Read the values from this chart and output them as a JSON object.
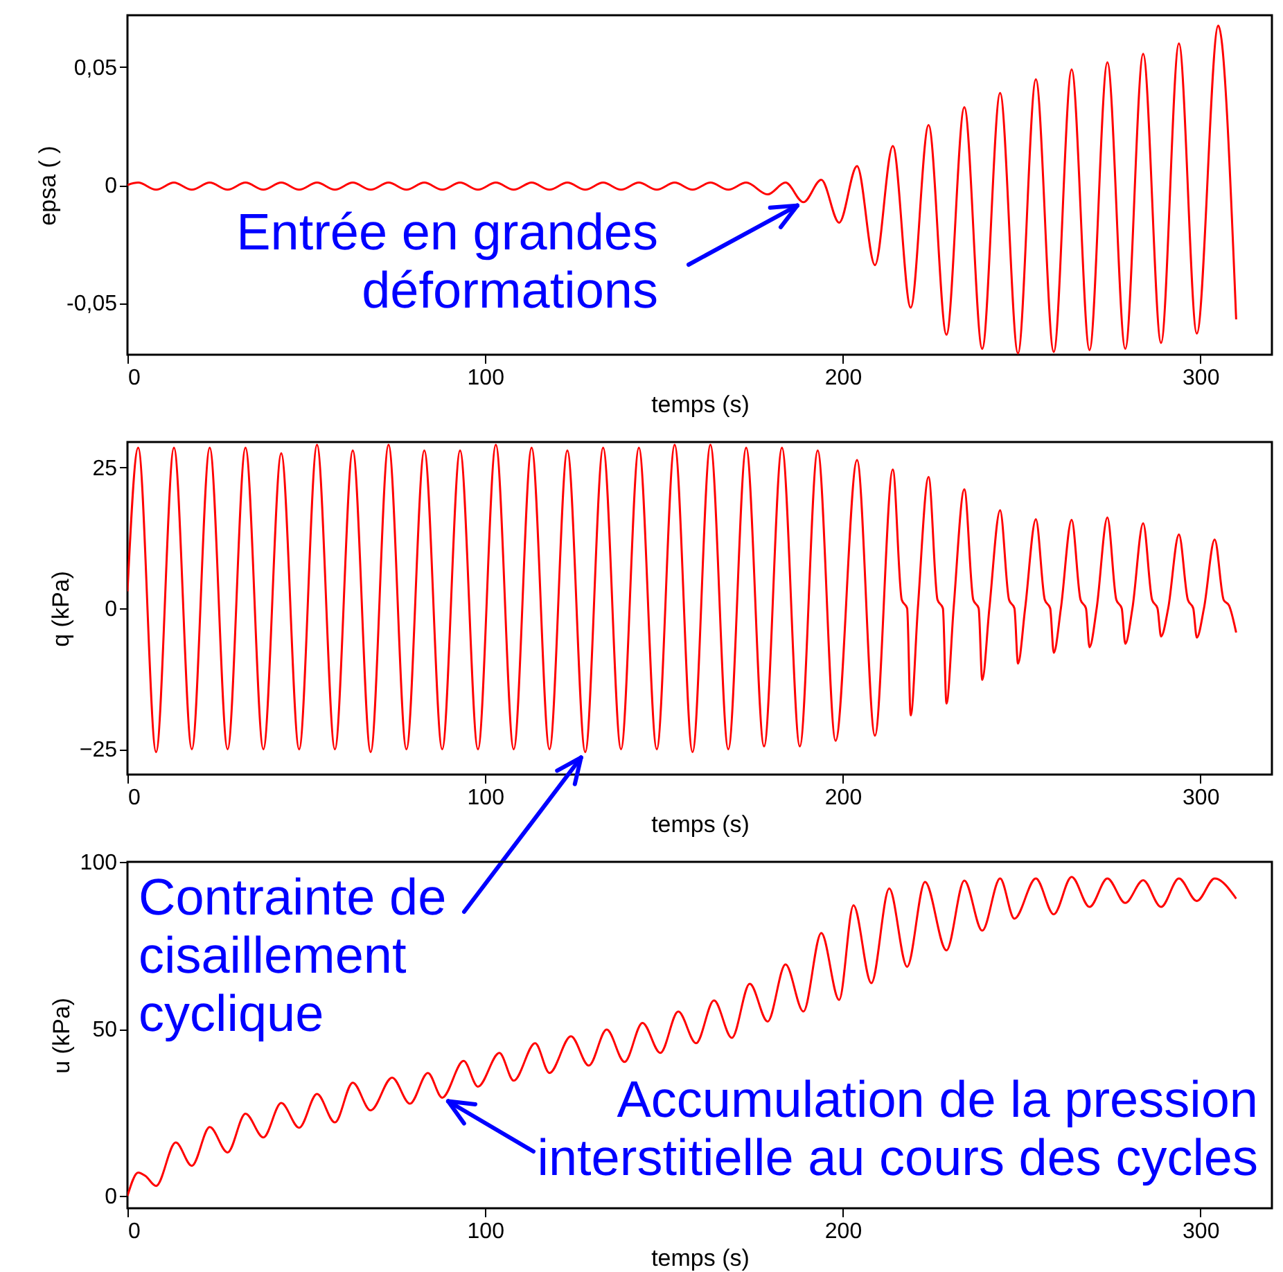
{
  "chart_data": [
    {
      "type": "line",
      "xlabel": "temps (s)",
      "ylabel": "epsa ( )",
      "xlim": [
        0,
        320
      ],
      "xticks": [
        0,
        100,
        200,
        300
      ],
      "ylim": [
        -0.072,
        0.072
      ],
      "yticks": [
        {
          "value": -0.05,
          "label": "-0,05"
        },
        0,
        {
          "value": 0.05,
          "label": "0,05"
        }
      ],
      "grid": false,
      "x": [
        0,
        3,
        8,
        13,
        18,
        23,
        28,
        33,
        38,
        43,
        48,
        53,
        58,
        63,
        68,
        73,
        78,
        83,
        88,
        93,
        98,
        103,
        108,
        113,
        118,
        123,
        128,
        133,
        138,
        143,
        148,
        153,
        158,
        163,
        168,
        173,
        179,
        184,
        189,
        194,
        199,
        204,
        209,
        214,
        219,
        224,
        229,
        234,
        239,
        244,
        249,
        254,
        259,
        264,
        269,
        274,
        279,
        284,
        289,
        294,
        299,
        305,
        310
      ],
      "series": [
        {
          "color": "#ff0000",
          "values": [
            0,
            0.001,
            -0.002,
            0.001,
            -0.002,
            0.001,
            -0.002,
            0.001,
            -0.002,
            0.001,
            -0.002,
            0.001,
            -0.002,
            0.001,
            -0.002,
            0.001,
            -0.002,
            0.001,
            -0.002,
            0.001,
            -0.002,
            0.001,
            -0.002,
            0.001,
            -0.002,
            0.001,
            -0.002,
            0.001,
            -0.002,
            0.001,
            -0.002,
            0.001,
            -0.002,
            0.001,
            -0.002,
            0.001,
            -0.004,
            0.001,
            -0.0073,
            0.0022,
            -0.016,
            0.008,
            -0.034,
            0.0165,
            -0.052,
            0.0254,
            -0.0635,
            0.033,
            -0.0695,
            0.039,
            -0.0714,
            0.0448,
            -0.0708,
            0.049,
            -0.07,
            0.052,
            -0.0695,
            0.0556,
            -0.067,
            0.06,
            -0.063,
            0.0676,
            -0.057
          ]
        }
      ],
      "annotations": [
        {
          "text": "Entrée en grandes\ndéformations",
          "x": 189,
          "y": -0.0073
        }
      ]
    },
    {
      "type": "line",
      "xlabel": "temps (s)",
      "ylabel": "q (kPa)",
      "xlim": [
        0,
        320
      ],
      "xticks": [
        0,
        100,
        200,
        300
      ],
      "ylim": [
        -29.5,
        29.5
      ],
      "yticks": [
        -25,
        0,
        25
      ],
      "grid": false,
      "x": [
        0,
        3,
        8,
        13,
        18,
        23,
        28,
        33,
        38,
        43,
        48,
        53,
        58,
        63,
        68,
        73,
        78,
        83,
        88,
        93,
        98,
        103,
        108,
        113,
        118,
        123,
        128,
        133,
        138,
        143,
        148,
        153,
        158,
        163,
        168,
        173,
        178,
        183,
        188,
        193,
        198,
        204,
        209,
        214,
        216.5,
        218,
        219,
        221,
        224,
        226.5,
        228,
        229,
        231,
        234,
        236.5,
        238,
        239,
        241,
        244,
        246.5,
        248,
        249,
        251,
        254,
        256.5,
        258,
        259,
        261,
        264,
        266.5,
        268,
        269,
        271,
        274,
        276.5,
        278,
        279,
        281,
        284,
        286.5,
        288,
        289,
        291,
        294,
        296.5,
        298,
        299,
        301,
        304,
        306.5,
        308,
        310
      ],
      "series": [
        {
          "color": "#ff0000",
          "values": [
            3,
            28.5,
            -25.5,
            28.5,
            -25,
            28.5,
            -25,
            28.5,
            -25,
            27.5,
            -25,
            29,
            -25,
            28,
            -25.5,
            29,
            -25,
            28,
            -25,
            28,
            -25,
            29,
            -25,
            28.5,
            -25,
            28,
            -25.5,
            28.5,
            -25,
            28.5,
            -25,
            29,
            -25.5,
            29,
            -25,
            28.5,
            -24.5,
            28.5,
            -24.5,
            28,
            -23.5,
            26.3,
            -22.6,
            24.6,
            1.5,
            0,
            -19,
            0,
            23.3,
            1.5,
            0,
            -16.9,
            0,
            21.1,
            1.5,
            0,
            -12.7,
            0,
            17.4,
            1.5,
            0,
            -9.8,
            0,
            15.8,
            1.5,
            0,
            -7.9,
            0,
            15.7,
            1.5,
            0,
            -6.9,
            0,
            16.1,
            1.5,
            0,
            -6.3,
            0,
            15.1,
            1.5,
            0,
            -5,
            0,
            13.1,
            1.5,
            0,
            -5.2,
            0,
            12.2,
            1.5,
            0.5,
            -4.3
          ]
        }
      ],
      "annotations": [
        {
          "text": "Contrainte de\ncisaillement\ncyclique",
          "x": 128,
          "y": -25.5
        }
      ]
    },
    {
      "type": "line",
      "xlabel": "temps (s)",
      "ylabel": "u (kPa)",
      "xlim": [
        0,
        320
      ],
      "xticks": [
        0,
        100,
        200,
        300
      ],
      "ylim": [
        -3.7,
        100
      ],
      "yticks": [
        0,
        50,
        100
      ],
      "grid": false,
      "x": [
        0,
        3,
        5,
        8,
        13.5,
        18,
        23,
        28,
        33,
        38,
        43,
        48,
        53,
        58,
        63,
        68,
        74,
        79,
        84,
        88,
        94,
        98,
        104,
        108,
        114,
        118,
        124,
        129,
        134,
        139,
        144,
        149,
        154,
        159,
        164,
        169,
        174,
        179,
        184,
        189,
        194,
        199,
        203,
        208,
        213,
        218,
        223,
        229,
        234,
        239,
        244,
        248,
        254,
        259,
        264,
        269,
        274,
        279,
        284,
        289,
        294,
        299,
        304,
        310
      ],
      "series": [
        {
          "color": "#ff0000",
          "values": [
            0,
            7,
            6,
            3,
            16,
            9,
            20.6,
            13,
            24.6,
            17.5,
            27.8,
            20.4,
            30.5,
            22,
            33.9,
            25.6,
            35.4,
            27.6,
            36.8,
            29.4,
            40.4,
            32.7,
            42.8,
            34.5,
            45.7,
            36.8,
            47.8,
            39,
            49.8,
            40.1,
            51.8,
            42.8,
            55.2,
            45.7,
            58.5,
            47.3,
            63.5,
            52.2,
            69.3,
            55.2,
            78.7,
            58.7,
            87,
            63.7,
            92,
            68.6,
            94,
            73.5,
            94.4,
            79.4,
            95,
            83,
            95,
            84.3,
            95.5,
            86.5,
            95,
            87.7,
            94.5,
            86.5,
            95,
            88.3,
            95,
            89
          ]
        }
      ],
      "annotations": [
        {
          "text": "Accumulation de la pression\ninterstitielle au cours des cycles",
          "x": 88,
          "y": 29.4
        }
      ]
    }
  ]
}
